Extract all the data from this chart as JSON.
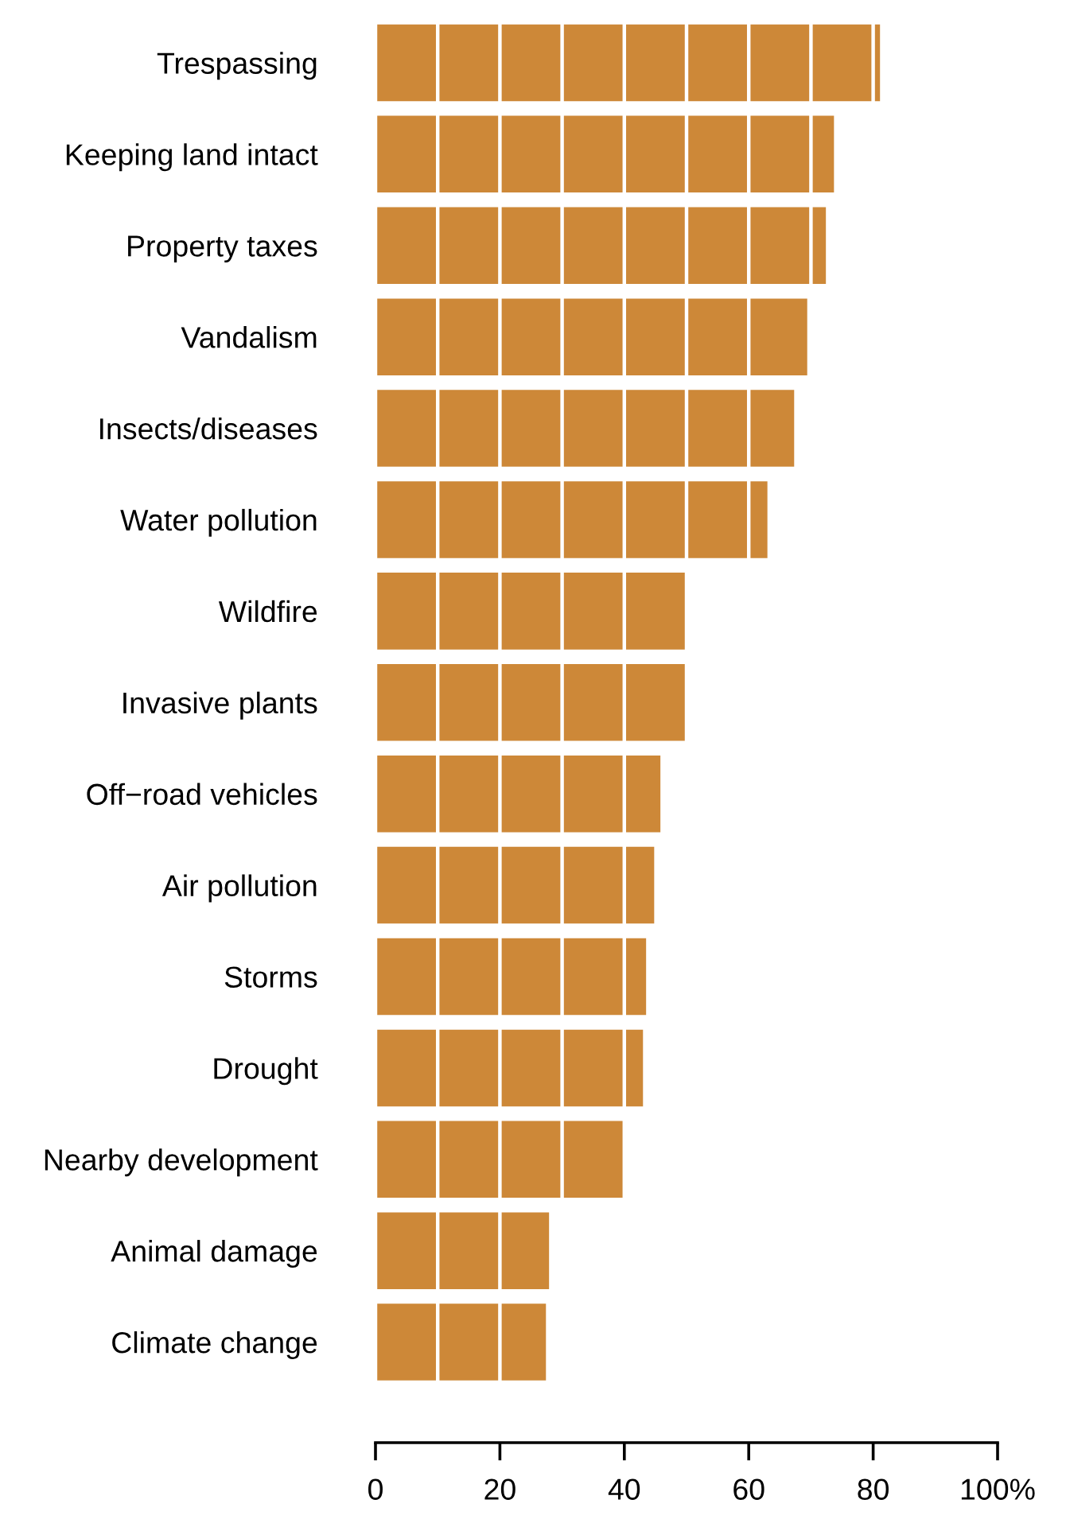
{
  "chart_data": {
    "type": "bar",
    "orientation": "horizontal",
    "categories": [
      "Trespassing",
      "Keeping land intact",
      "Property taxes",
      "Vandalism",
      "Insects/diseases",
      "Water pollution",
      "Wildfire",
      "Invasive plants",
      "Off−road vehicles",
      "Air pollution",
      "Storms",
      "Drought",
      "Nearby development",
      "Animal damage",
      "Climate change"
    ],
    "values": [
      81.1,
      73.7,
      72.4,
      69.4,
      67.3,
      63.0,
      49.9,
      49.9,
      45.8,
      44.8,
      43.5,
      43.0,
      39.9,
      27.9,
      27.4
    ],
    "color": "#cd8838",
    "xlim": [
      0,
      100
    ],
    "xticks": [
      0,
      20,
      40,
      60,
      80,
      {
        "value": 100,
        "label": "100%"
      }
    ],
    "grid": "x"
  }
}
